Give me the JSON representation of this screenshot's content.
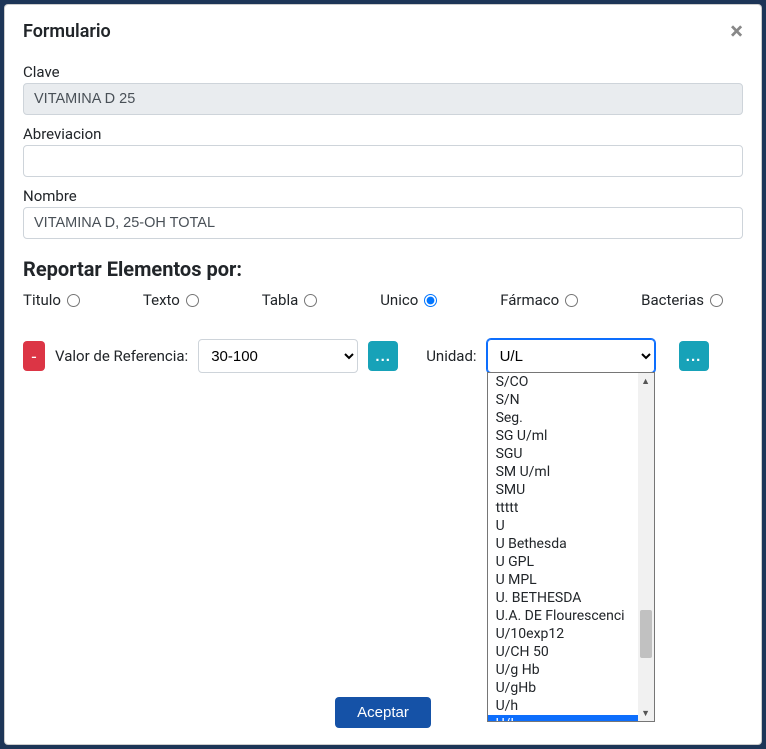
{
  "modal": {
    "title": "Formulario",
    "close_symbol": "×"
  },
  "fields": {
    "clave": {
      "label": "Clave",
      "value": "VITAMINA D 25",
      "readonly": true
    },
    "abreviacion": {
      "label": "Abreviacion",
      "value": ""
    },
    "nombre": {
      "label": "Nombre",
      "value": "VITAMINA D, 25-OH TOTAL"
    }
  },
  "section_title": "Reportar Elementos por:",
  "radios": [
    {
      "label": "Titulo",
      "checked": false
    },
    {
      "label": "Texto",
      "checked": false
    },
    {
      "label": "Tabla",
      "checked": false
    },
    {
      "label": "Unico",
      "checked": true
    },
    {
      "label": "Fármaco",
      "checked": false
    },
    {
      "label": "Bacterias",
      "checked": false
    }
  ],
  "reference": {
    "minus": "-",
    "label": "Valor de Referencia:",
    "selected": "30-100",
    "ellipsis": "..."
  },
  "unidad": {
    "label": "Unidad:",
    "selected": "U/L",
    "ellipsis": "...",
    "options": [
      "S/CO",
      "S/N",
      "Seg.",
      "SG U/ml",
      "SGU",
      "SM U/ml",
      "SMU",
      "ttttt",
      "U",
      "U Bethesda",
      "U GPL",
      "U MPL",
      "U. BETHESDA",
      "U.A. DE Flourescenci",
      "U/10exp12",
      "U/CH 50",
      "U/g Hb",
      "U/gHb",
      "U/h",
      "U/L"
    ],
    "selected_index": 19
  },
  "footer": {
    "accept": "Aceptar"
  },
  "colors": {
    "primary_btn": "#1552a7",
    "danger": "#dc3545",
    "info": "#17a2b8",
    "select_focus": "#0d6efd",
    "dropdown_selected_bg": "#0d6efd"
  }
}
